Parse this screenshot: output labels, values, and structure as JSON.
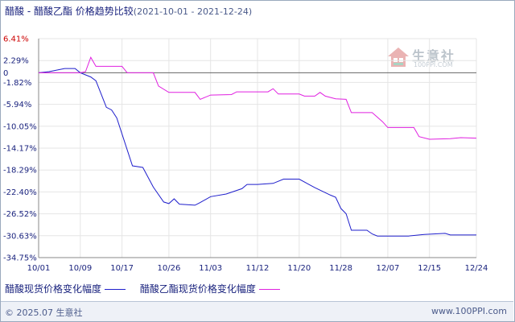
{
  "header": {
    "title_main": "醋酸 - 醋酸乙酯 价格趋势比较",
    "title_range": "(2021-10-01 - 2021-12-24)"
  },
  "watermark": {
    "text": "生意社",
    "sub": "100PPI.COM"
  },
  "footer": {
    "left": "© 2025.07 生意社",
    "right": "www.100PPI.com"
  },
  "colors": {
    "series1": "#1f1fcc",
    "series2": "#e020e0",
    "grid": "#e5e5e5",
    "axis": "#888888",
    "zero": "#666666",
    "tick_text": "#1a237e",
    "top_tick_text": "#cc0000"
  },
  "chart_data": {
    "type": "line",
    "title": "醋酸 - 醋酸乙酯 价格趋势比较",
    "subtitle": "(2021-10-01 - 2021-12-24)",
    "x_ticks": [
      "10/01",
      "10/09",
      "10/17",
      "10/26",
      "11/03",
      "11/12",
      "11/20",
      "11/28",
      "12/07",
      "12/15",
      "12/24"
    ],
    "x_tick_days": [
      0,
      8,
      16,
      25,
      33,
      42,
      50,
      58,
      67,
      75,
      84
    ],
    "y_ticks": [
      6.41,
      2.29,
      0,
      -1.82,
      -5.94,
      -10.05,
      -14.17,
      -18.29,
      -22.4,
      -26.52,
      -30.63,
      -34.75
    ],
    "y_tick_labels": [
      "6.41%",
      "2.29%",
      "0",
      "-1.82%",
      "-5.94%",
      "-10.05%",
      "-14.17%",
      "-18.29%",
      "-22.40%",
      "-26.52%",
      "-30.63%",
      "-34.75%"
    ],
    "ylim": [
      -34.75,
      6.41
    ],
    "legend_position": "bottom",
    "series": [
      {
        "name": "醋酸现货价格变化幅度",
        "points": [
          [
            "10/01",
            0
          ],
          [
            "10/03",
            0.2
          ],
          [
            "10/06",
            0.8
          ],
          [
            "10/08",
            0.8
          ],
          [
            "10/09",
            0
          ],
          [
            "10/11",
            -0.8
          ],
          [
            "10/12",
            -1.5
          ],
          [
            "10/14",
            -6.5
          ],
          [
            "10/15",
            -7.0
          ],
          [
            "10/16",
            -8.5
          ],
          [
            "10/18",
            -14.5
          ],
          [
            "10/19",
            -17.5
          ],
          [
            "10/21",
            -17.8
          ],
          [
            "10/23",
            -21.5
          ],
          [
            "10/25",
            -24.3
          ],
          [
            "10/26",
            -24.6
          ],
          [
            "10/27",
            -23.7
          ],
          [
            "10/28",
            -24.7
          ],
          [
            "10/31",
            -24.9
          ],
          [
            "11/01",
            -24.4
          ],
          [
            "11/03",
            -23.3
          ],
          [
            "11/06",
            -22.8
          ],
          [
            "11/09",
            -21.8
          ],
          [
            "11/10",
            -21.0
          ],
          [
            "11/12",
            -21.0
          ],
          [
            "11/15",
            -20.8
          ],
          [
            "11/17",
            -20.0
          ],
          [
            "11/20",
            -20.0
          ],
          [
            "11/23",
            -21.6
          ],
          [
            "11/26",
            -23.0
          ],
          [
            "11/27",
            -23.4
          ],
          [
            "11/28",
            -25.5
          ],
          [
            "11/29",
            -26.5
          ],
          [
            "11/30",
            -29.6
          ],
          [
            "12/03",
            -29.6
          ],
          [
            "12/04",
            -30.3
          ],
          [
            "12/05",
            -30.7
          ],
          [
            "12/11",
            -30.7
          ],
          [
            "12/14",
            -30.4
          ],
          [
            "12/18",
            -30.2
          ],
          [
            "12/19",
            -30.5
          ],
          [
            "12/24",
            -30.5
          ]
        ]
      },
      {
        "name": "醋酸乙酯现货价格变化幅度",
        "points": [
          [
            "10/01",
            0
          ],
          [
            "10/09",
            0
          ],
          [
            "10/10",
            0.2
          ],
          [
            "10/11",
            2.9
          ],
          [
            "10/12",
            1.2
          ],
          [
            "10/17",
            1.2
          ],
          [
            "10/18",
            0
          ],
          [
            "10/23",
            0
          ],
          [
            "10/24",
            -2.5
          ],
          [
            "10/26",
            -3.7
          ],
          [
            "10/31",
            -3.7
          ],
          [
            "11/01",
            -5.0
          ],
          [
            "11/03",
            -4.2
          ],
          [
            "11/07",
            -4.1
          ],
          [
            "11/08",
            -3.6
          ],
          [
            "11/14",
            -3.6
          ],
          [
            "11/15",
            -3.0
          ],
          [
            "11/16",
            -4.0
          ],
          [
            "11/20",
            -4.0
          ],
          [
            "11/21",
            -4.4
          ],
          [
            "11/23",
            -4.4
          ],
          [
            "11/24",
            -3.7
          ],
          [
            "11/25",
            -4.4
          ],
          [
            "11/27",
            -4.9
          ],
          [
            "11/29",
            -5.0
          ],
          [
            "11/30",
            -7.5
          ],
          [
            "12/04",
            -7.5
          ],
          [
            "12/06",
            -9.2
          ],
          [
            "12/07",
            -10.3
          ],
          [
            "12/12",
            -10.3
          ],
          [
            "12/13",
            -12.0
          ],
          [
            "12/15",
            -12.5
          ],
          [
            "12/19",
            -12.4
          ],
          [
            "12/21",
            -12.2
          ],
          [
            "12/24",
            -12.3
          ]
        ]
      }
    ]
  }
}
